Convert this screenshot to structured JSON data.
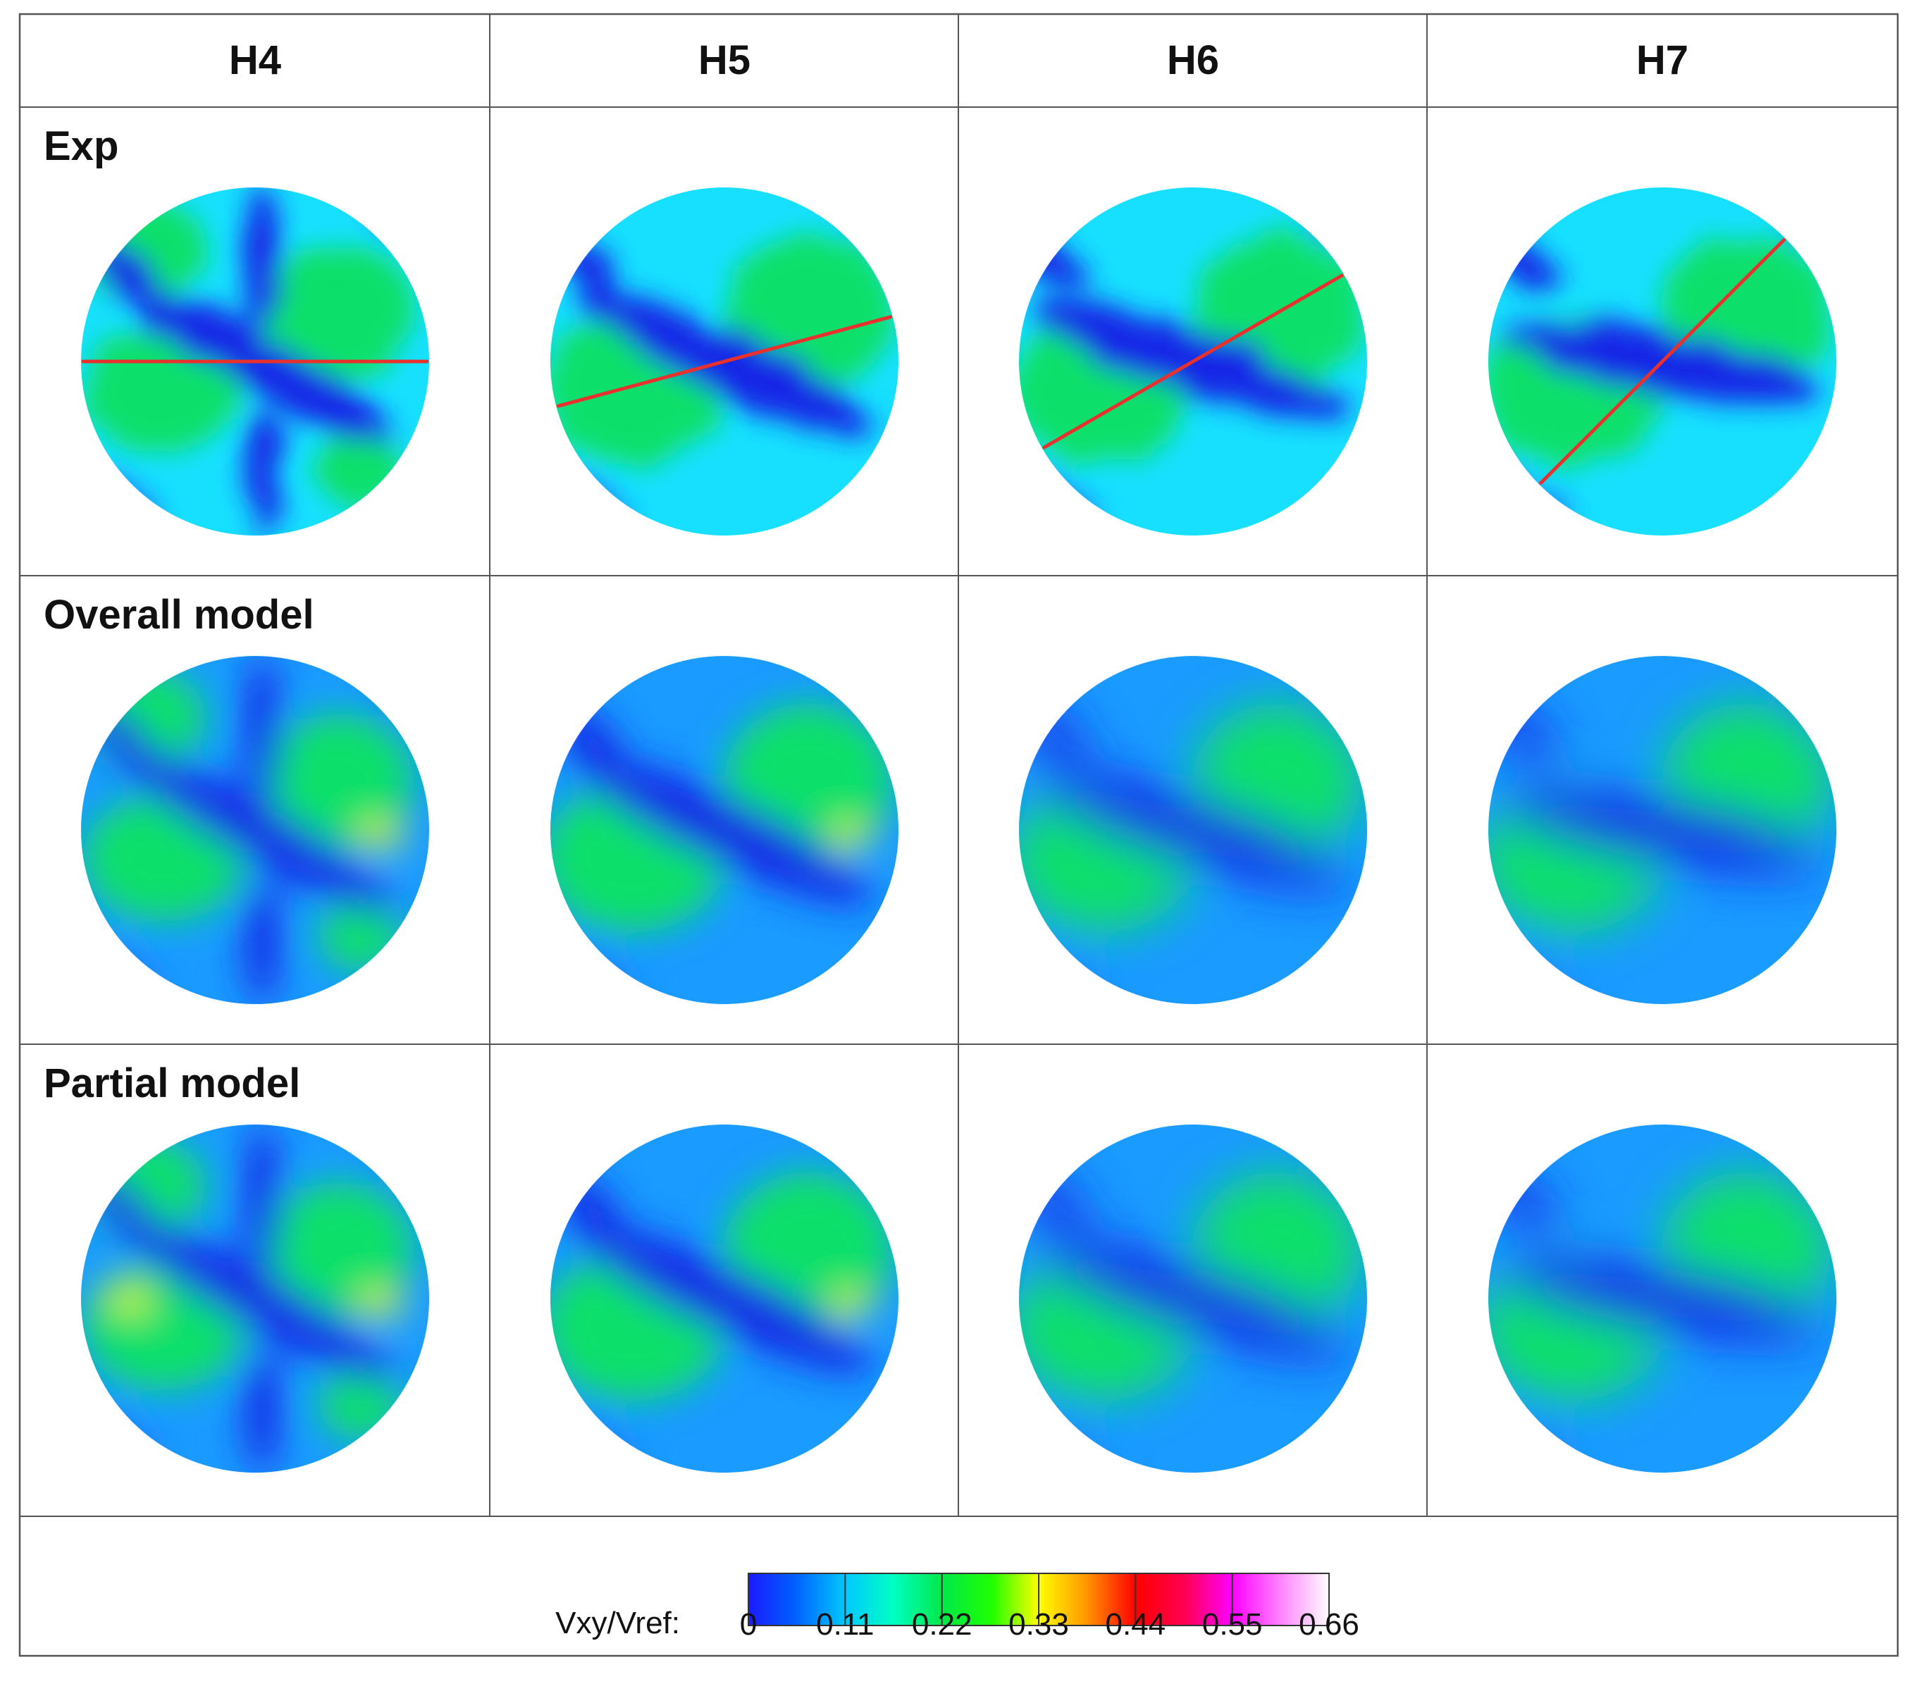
{
  "columns": [
    "H4",
    "H5",
    "H6",
    "H7"
  ],
  "rows": [
    "Exp",
    "Overall model",
    "Partial model"
  ],
  "colorbar": {
    "label": "Vxy/Vref:",
    "ticks": [
      "0",
      "0.11",
      "0.22",
      "0.33",
      "0.44",
      "0.55",
      "0.66"
    ],
    "range": [
      0,
      0.66
    ],
    "colors": [
      "#1a1aff",
      "#00a2ff",
      "#00ffe0",
      "#00e84a",
      "#00ff00",
      "#b4ff00",
      "#ffff00",
      "#ff9900",
      "#ff0000",
      "#ff0066",
      "#ff00ff",
      "#ff99ff",
      "#ffffff"
    ]
  },
  "field_colors": {
    "low": "#1528e6",
    "mid_low": "#1e7bff",
    "cyan": "#17e0ff",
    "green": "#11e06a",
    "bright_green": "#2df03a",
    "yellow": "#f0ff2a"
  },
  "profile_line_color": "#e8312c",
  "profile_line_angles_deg": {
    "H4": 0,
    "H5": 15,
    "H6": 30,
    "H7": 45
  },
  "vortex_tilt_deg": {
    "H4": 30,
    "H5": 25,
    "H6": 18,
    "H7": 10
  }
}
